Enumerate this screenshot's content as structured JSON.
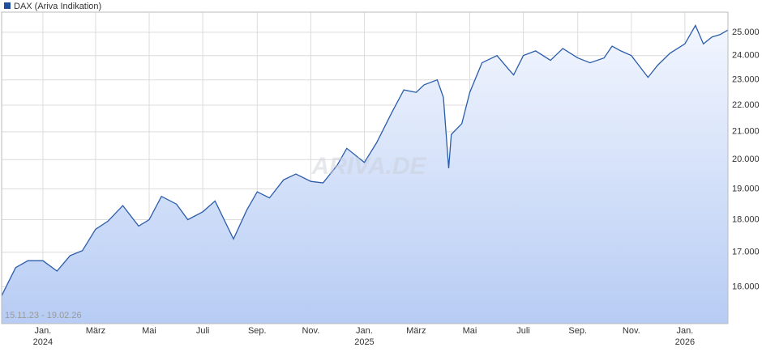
{
  "chart_data": {
    "type": "line",
    "title": "DAX (Ariva Indikation)",
    "range_label": "15.11.23 - 19.02.26",
    "watermark": "ARIVA.DE",
    "log_scale": true,
    "grid": true,
    "legend": "top-left",
    "xlim": [
      "2023-11-15",
      "2026-02-19"
    ],
    "xticks": [
      {
        "value": "2024-01-01",
        "label": "Jan.",
        "year": "2024"
      },
      {
        "value": "2024-03-01",
        "label": "März"
      },
      {
        "value": "2024-05-01",
        "label": "Mai"
      },
      {
        "value": "2024-07-01",
        "label": "Juli"
      },
      {
        "value": "2024-09-01",
        "label": "Sep."
      },
      {
        "value": "2024-11-01",
        "label": "Nov."
      },
      {
        "value": "2025-01-01",
        "label": "Jan.",
        "year": "2025"
      },
      {
        "value": "2025-03-01",
        "label": "März"
      },
      {
        "value": "2025-05-01",
        "label": "Mai"
      },
      {
        "value": "2025-07-01",
        "label": "Juli"
      },
      {
        "value": "2025-09-01",
        "label": "Sep."
      },
      {
        "value": "2025-11-01",
        "label": "Nov."
      },
      {
        "value": "2026-01-01",
        "label": "Jan.",
        "year": "2026"
      }
    ],
    "ylim": [
      15000,
      25900
    ],
    "yticks": [
      {
        "value": 16000,
        "label": "16.000"
      },
      {
        "value": 17000,
        "label": "17.000"
      },
      {
        "value": 18000,
        "label": "18.000"
      },
      {
        "value": 19000,
        "label": "19.000"
      },
      {
        "value": 20000,
        "label": "20.000"
      },
      {
        "value": 21000,
        "label": "21.000"
      },
      {
        "value": 22000,
        "label": "22.000"
      },
      {
        "value": 23000,
        "label": "23.000"
      },
      {
        "value": 24000,
        "label": "24.000"
      },
      {
        "value": 25000,
        "label": "25.000"
      }
    ],
    "x": [
      "2023-11-15",
      "2023-12-01",
      "2023-12-15",
      "2024-01-01",
      "2024-01-17",
      "2024-02-01",
      "2024-02-15",
      "2024-03-01",
      "2024-03-15",
      "2024-04-01",
      "2024-04-19",
      "2024-05-01",
      "2024-05-15",
      "2024-06-01",
      "2024-06-14",
      "2024-07-01",
      "2024-07-15",
      "2024-08-05",
      "2024-08-20",
      "2024-09-01",
      "2024-09-15",
      "2024-10-01",
      "2024-10-15",
      "2024-11-01",
      "2024-11-15",
      "2024-12-01",
      "2024-12-12",
      "2025-01-01",
      "2025-01-15",
      "2025-02-01",
      "2025-02-15",
      "2025-03-01",
      "2025-03-10",
      "2025-03-25",
      "2025-04-01",
      "2025-04-07",
      "2025-04-10",
      "2025-04-22",
      "2025-05-01",
      "2025-05-15",
      "2025-06-01",
      "2025-06-15",
      "2025-06-20",
      "2025-07-01",
      "2025-07-15",
      "2025-08-01",
      "2025-08-15",
      "2025-09-01",
      "2025-09-15",
      "2025-10-01",
      "2025-10-10",
      "2025-10-20",
      "2025-11-01",
      "2025-11-20",
      "2025-12-01",
      "2025-12-15",
      "2026-01-01",
      "2026-01-13",
      "2026-01-22",
      "2026-02-01",
      "2026-02-10",
      "2026-02-19"
    ],
    "series": [
      {
        "name": "DAX (Ariva Indikation)",
        "color": "#2a5caa",
        "values": [
          15750,
          16550,
          16750,
          16750,
          16450,
          16900,
          17050,
          17700,
          17950,
          18450,
          17800,
          18000,
          18750,
          18500,
          18000,
          18250,
          18600,
          17400,
          18300,
          18900,
          18700,
          19300,
          19500,
          19250,
          19200,
          19800,
          20400,
          19900,
          20600,
          21700,
          22600,
          22500,
          22800,
          23000,
          22300,
          19700,
          20900,
          21300,
          22500,
          23700,
          24000,
          23400,
          23200,
          24000,
          24200,
          23800,
          24300,
          23900,
          23700,
          23900,
          24400,
          24200,
          24000,
          23100,
          23600,
          24100,
          24500,
          25300,
          24500,
          24800,
          24900,
          25100
        ]
      }
    ]
  }
}
